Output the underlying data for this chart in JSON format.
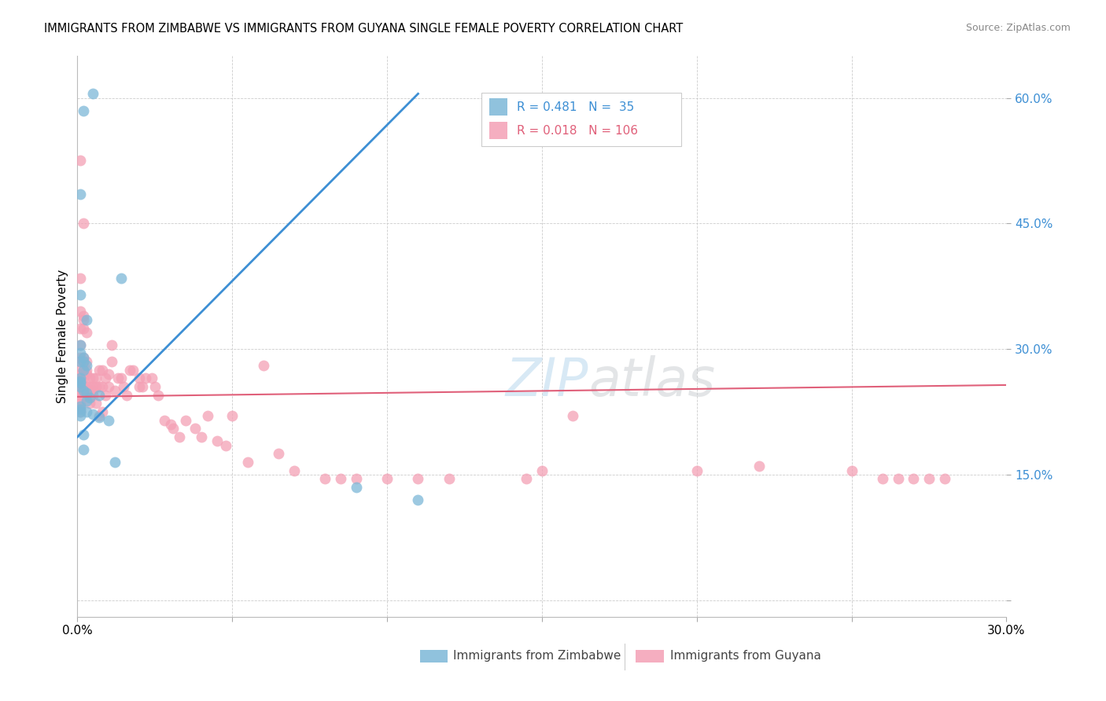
{
  "title": "IMMIGRANTS FROM ZIMBABWE VS IMMIGRANTS FROM GUYANA SINGLE FEMALE POVERTY CORRELATION CHART",
  "source": "Source: ZipAtlas.com",
  "ylabel": "Single Female Poverty",
  "xlim": [
    0.0,
    0.3
  ],
  "ylim": [
    -0.02,
    0.65
  ],
  "yticks": [
    0.0,
    0.15,
    0.3,
    0.45,
    0.6
  ],
  "xticks": [
    0.0,
    0.05,
    0.1,
    0.15,
    0.2,
    0.25,
    0.3
  ],
  "legend_blue_R": "0.481",
  "legend_blue_N": "35",
  "legend_pink_R": "0.018",
  "legend_pink_N": "106",
  "watermark_zip": "ZIP",
  "watermark_atlas": "atlas",
  "zimbabwe_color": "#7db8d8",
  "guyana_color": "#f4a0b5",
  "line_blue": "#3d8fd4",
  "line_pink": "#e0607a",
  "zimbabwe_label": "Immigrants from Zimbabwe",
  "guyana_label": "Immigrants from Guyana",
  "blue_line_x0": 0.0,
  "blue_line_y0": 0.195,
  "blue_line_x1": 0.11,
  "blue_line_y1": 0.605,
  "pink_line_x0": 0.0,
  "pink_line_y0": 0.243,
  "pink_line_x1": 0.3,
  "pink_line_y1": 0.257,
  "zim_x": [
    0.002,
    0.001,
    0.005,
    0.014,
    0.001,
    0.003,
    0.001,
    0.001,
    0.002,
    0.002,
    0.001,
    0.003,
    0.002,
    0.001,
    0.001,
    0.001,
    0.001,
    0.002,
    0.003,
    0.007,
    0.004,
    0.003,
    0.001,
    0.001,
    0.001,
    0.001,
    0.003,
    0.005,
    0.007,
    0.01,
    0.002,
    0.002,
    0.012,
    0.09,
    0.11
  ],
  "zim_y": [
    0.585,
    0.485,
    0.605,
    0.385,
    0.365,
    0.335,
    0.305,
    0.295,
    0.29,
    0.285,
    0.285,
    0.28,
    0.275,
    0.265,
    0.262,
    0.26,
    0.255,
    0.25,
    0.248,
    0.245,
    0.242,
    0.238,
    0.232,
    0.228,
    0.225,
    0.22,
    0.225,
    0.222,
    0.218,
    0.215,
    0.198,
    0.18,
    0.165,
    0.135,
    0.12
  ],
  "guy_x": [
    0.001,
    0.001,
    0.001,
    0.001,
    0.001,
    0.001,
    0.001,
    0.001,
    0.001,
    0.001,
    0.001,
    0.001,
    0.001,
    0.001,
    0.001,
    0.001,
    0.002,
    0.002,
    0.002,
    0.002,
    0.002,
    0.002,
    0.002,
    0.002,
    0.002,
    0.002,
    0.003,
    0.003,
    0.003,
    0.003,
    0.003,
    0.004,
    0.004,
    0.004,
    0.004,
    0.004,
    0.005,
    0.005,
    0.005,
    0.005,
    0.006,
    0.006,
    0.006,
    0.007,
    0.007,
    0.007,
    0.008,
    0.008,
    0.008,
    0.009,
    0.009,
    0.01,
    0.01,
    0.011,
    0.011,
    0.012,
    0.013,
    0.014,
    0.015,
    0.016,
    0.017,
    0.018,
    0.02,
    0.02,
    0.021,
    0.022,
    0.024,
    0.025,
    0.026,
    0.028,
    0.03,
    0.031,
    0.033,
    0.035,
    0.038,
    0.04,
    0.042,
    0.045,
    0.048,
    0.05,
    0.055,
    0.06,
    0.065,
    0.07,
    0.08,
    0.085,
    0.09,
    0.1,
    0.11,
    0.12,
    0.145,
    0.15,
    0.16,
    0.2,
    0.22,
    0.25,
    0.26,
    0.265,
    0.27,
    0.275,
    0.28,
    0.001,
    0.001,
    0.001,
    0.002,
    0.002
  ],
  "guy_y": [
    0.525,
    0.385,
    0.345,
    0.325,
    0.305,
    0.29,
    0.285,
    0.275,
    0.27,
    0.265,
    0.26,
    0.255,
    0.252,
    0.25,
    0.245,
    0.24,
    0.45,
    0.34,
    0.335,
    0.325,
    0.29,
    0.285,
    0.275,
    0.265,
    0.255,
    0.245,
    0.32,
    0.285,
    0.275,
    0.27,
    0.255,
    0.265,
    0.255,
    0.25,
    0.245,
    0.235,
    0.265,
    0.255,
    0.25,
    0.245,
    0.265,
    0.255,
    0.235,
    0.275,
    0.255,
    0.22,
    0.275,
    0.255,
    0.225,
    0.265,
    0.245,
    0.27,
    0.255,
    0.305,
    0.285,
    0.25,
    0.265,
    0.265,
    0.255,
    0.245,
    0.275,
    0.275,
    0.255,
    0.265,
    0.255,
    0.265,
    0.265,
    0.255,
    0.245,
    0.215,
    0.21,
    0.205,
    0.195,
    0.215,
    0.205,
    0.195,
    0.22,
    0.19,
    0.185,
    0.22,
    0.165,
    0.28,
    0.175,
    0.155,
    0.145,
    0.145,
    0.145,
    0.145,
    0.145,
    0.145,
    0.145,
    0.155,
    0.22,
    0.155,
    0.16,
    0.155,
    0.145,
    0.145,
    0.145,
    0.145,
    0.145,
    0.235,
    0.23,
    0.225,
    0.27,
    0.285
  ]
}
